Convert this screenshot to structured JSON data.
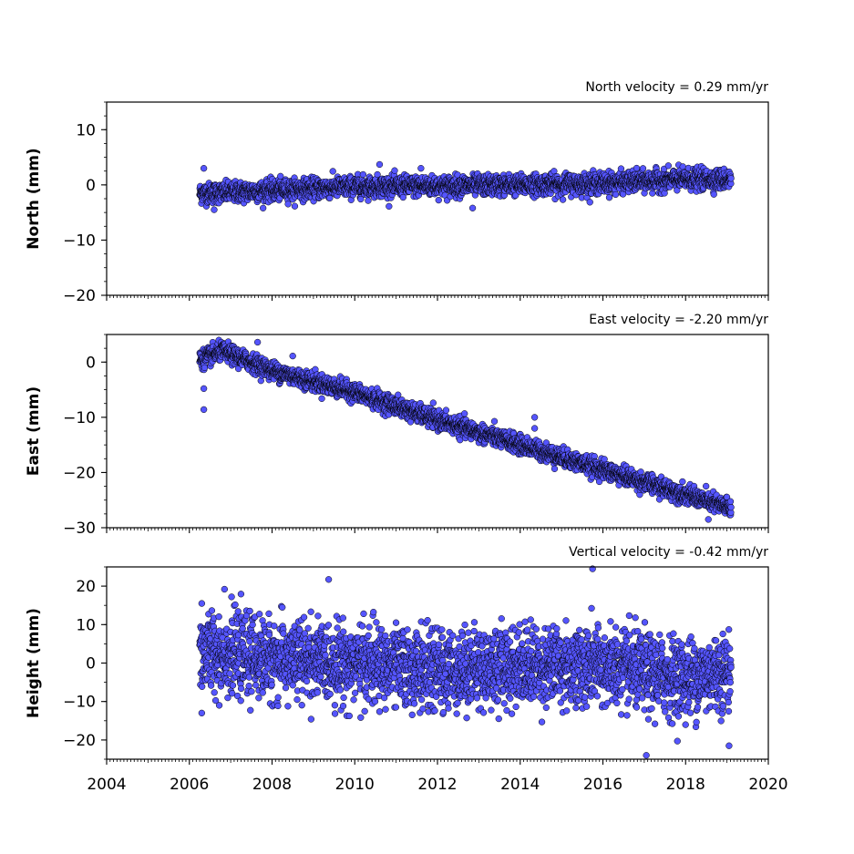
{
  "colors": {
    "marker_fill": "#5555ff",
    "marker_edge": "#000000",
    "axes": "#000000",
    "background": "#ffffff"
  },
  "chart_data": [
    {
      "type": "scatter",
      "title": "North velocity = 0.29 mm/yr",
      "ylabel": "North (mm)",
      "xlabel": "",
      "xlim": [
        2004,
        2020
      ],
      "ylim": [
        -20,
        15
      ],
      "xticks": [
        2004,
        2006,
        2008,
        2010,
        2012,
        2014,
        2016,
        2018,
        2020
      ],
      "yticks": [
        -20,
        -10,
        0,
        10
      ],
      "xticklabels_shown": false,
      "grid": false,
      "series": [
        {
          "x_range": [
            2006.25,
            2019.1
          ],
          "velocity_mm_per_yr": 0.29,
          "trend_samples": [
            {
              "x": 2006.5,
              "y": -1.5
            },
            {
              "x": 2008,
              "y": -1.0
            },
            {
              "x": 2010,
              "y": -0.3
            },
            {
              "x": 2012,
              "y": -0.2
            },
            {
              "x": 2014,
              "y": 0.0
            },
            {
              "x": 2016,
              "y": 0.3
            },
            {
              "x": 2018,
              "y": 1.0
            },
            {
              "x": 2019,
              "y": 1.0
            }
          ],
          "noise_sd_mm": 0.9,
          "outliers": [
            {
              "x": 2006.35,
              "y": 3.0
            },
            {
              "x": 2010.6,
              "y": 3.7
            },
            {
              "x": 2011.6,
              "y": 3.0
            },
            {
              "x": 2006.6,
              "y": -4.5
            },
            {
              "x": 2012.85,
              "y": -4.2
            }
          ]
        }
      ]
    },
    {
      "type": "scatter",
      "title": "East velocity = -2.20 mm/yr",
      "ylabel": "East (mm)",
      "xlabel": "",
      "xlim": [
        2004,
        2020
      ],
      "ylim": [
        -30,
        5
      ],
      "xticks": [
        2004,
        2006,
        2008,
        2010,
        2012,
        2014,
        2016,
        2018,
        2020
      ],
      "yticks": [
        -30,
        -20,
        -10,
        0
      ],
      "xticklabels_shown": false,
      "grid": false,
      "series": [
        {
          "x_range": [
            2006.25,
            2019.1
          ],
          "velocity_mm_per_yr": -2.2,
          "trend_samples": [
            {
              "x": 2006.3,
              "y": 0.5
            },
            {
              "x": 2006.8,
              "y": 2.0
            },
            {
              "x": 2008,
              "y": -1.5
            },
            {
              "x": 2010,
              "y": -5.5
            },
            {
              "x": 2012,
              "y": -10.5
            },
            {
              "x": 2014,
              "y": -15.0
            },
            {
              "x": 2016,
              "y": -19.5
            },
            {
              "x": 2018,
              "y": -24.0
            },
            {
              "x": 2019.1,
              "y": -26.5
            }
          ],
          "noise_sd_mm": 0.8,
          "outliers": [
            {
              "x": 2006.35,
              "y": -8.6
            },
            {
              "x": 2006.35,
              "y": -4.8
            },
            {
              "x": 2007.65,
              "y": 3.6
            },
            {
              "x": 2008.5,
              "y": 1.1
            },
            {
              "x": 2014.35,
              "y": -10.0
            },
            {
              "x": 2014.35,
              "y": -12.0
            },
            {
              "x": 2018.55,
              "y": -28.5
            }
          ]
        }
      ]
    },
    {
      "type": "scatter",
      "title": "Vertical velocity = -0.42 mm/yr",
      "ylabel": "Height (mm)",
      "xlabel": "",
      "xlim": [
        2004,
        2020
      ],
      "ylim": [
        -25,
        25
      ],
      "xticks": [
        2004,
        2006,
        2008,
        2010,
        2012,
        2014,
        2016,
        2018,
        2020
      ],
      "xticklabels": [
        "2004",
        "2006",
        "2008",
        "2010",
        "2012",
        "2014",
        "2016",
        "2018",
        "2020"
      ],
      "yticks": [
        -20,
        -10,
        0,
        10,
        20
      ],
      "xticklabels_shown": true,
      "grid": false,
      "series": [
        {
          "x_range": [
            2006.25,
            2019.1
          ],
          "velocity_mm_per_yr": -0.42,
          "trend_samples": [
            {
              "x": 2006.5,
              "y": 3.0
            },
            {
              "x": 2008,
              "y": 1.0
            },
            {
              "x": 2010,
              "y": 0.0
            },
            {
              "x": 2012,
              "y": -2.0
            },
            {
              "x": 2014,
              "y": -0.5
            },
            {
              "x": 2016,
              "y": -1.0
            },
            {
              "x": 2018,
              "y": -4.0
            },
            {
              "x": 2019,
              "y": -2.0
            }
          ],
          "noise_sd_mm": 5.0,
          "outliers": [
            {
              "x": 2006.3,
              "y": 15.5
            },
            {
              "x": 2006.85,
              "y": 19.2
            },
            {
              "x": 2015.75,
              "y": 24.5
            },
            {
              "x": 2017.05,
              "y": -24.0
            },
            {
              "x": 2019.05,
              "y": -21.5
            },
            {
              "x": 2006.3,
              "y": -13.0
            }
          ]
        }
      ]
    }
  ]
}
